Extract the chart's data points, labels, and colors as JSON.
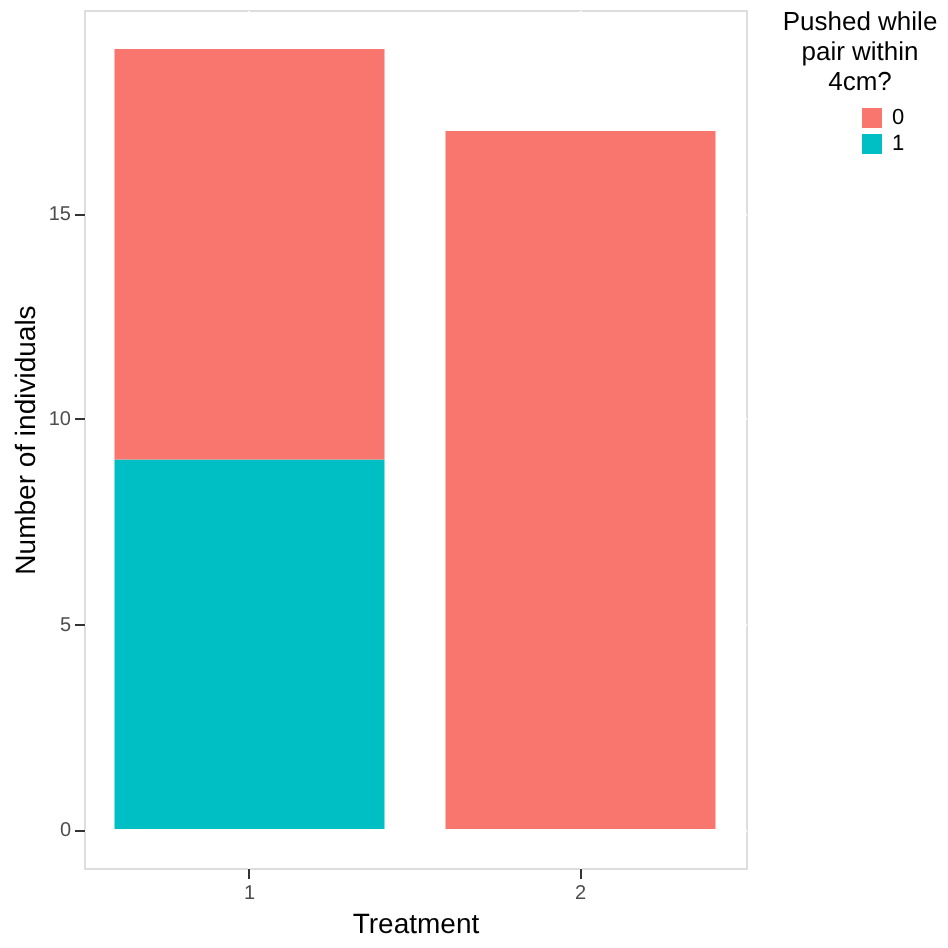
{
  "chart_data": {
    "type": "bar",
    "stacked": true,
    "xlabel": "Treatment",
    "ylabel": "Number of individuals",
    "legend_title": "Pushed while pair within 4cm?",
    "legend": "right",
    "grid": true,
    "categories": [
      "1",
      "2"
    ],
    "series": [
      {
        "name": "1",
        "color": "#00bfc4",
        "values": [
          9,
          null
        ]
      },
      {
        "name": "0",
        "color": "#f8766d",
        "values": [
          10,
          17
        ]
      }
    ],
    "ylim": [
      -0.95,
      19.95
    ],
    "yticks": [
      0,
      5,
      10,
      15
    ]
  }
}
